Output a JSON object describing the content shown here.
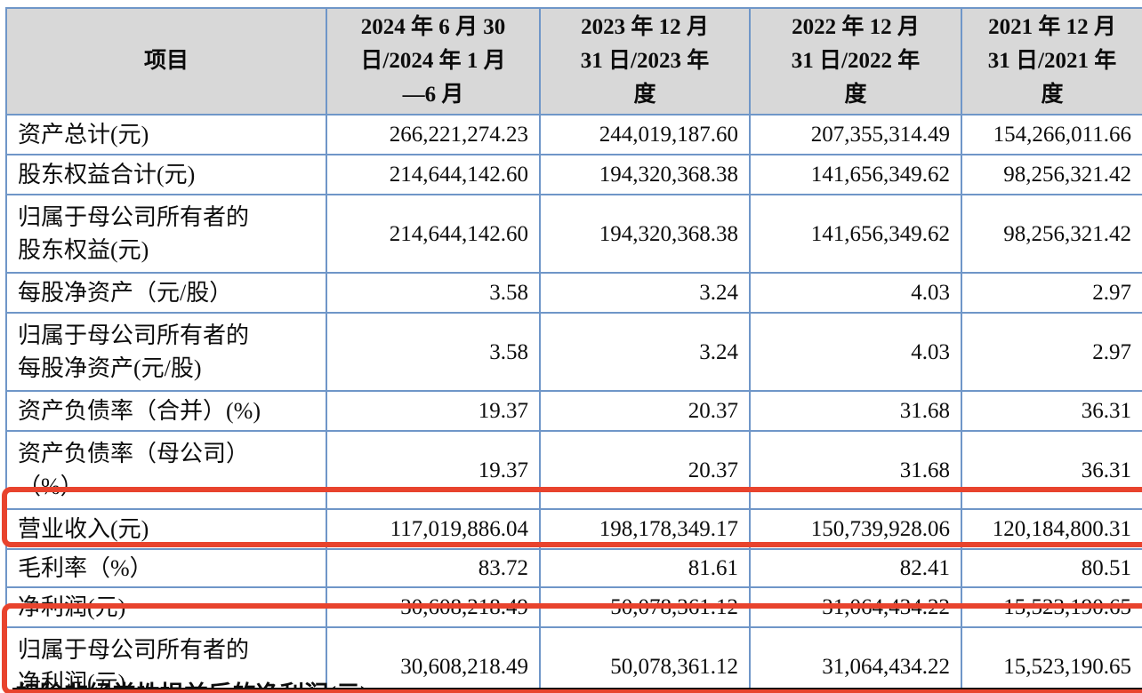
{
  "table": {
    "columns": [
      "项目",
      "2024 年 6 月 30\n日/2024 年 1 月\n—6 月",
      "2023 年 12 月\n31 日/2023 年\n度",
      "2022 年 12 月\n31 日/2022 年\n度",
      "2021 年 12 月\n31 日/2021 年\n度"
    ],
    "rows": [
      {
        "label": "资产总计(元)",
        "size": "h1",
        "values": [
          "266,221,274.23",
          "244,019,187.60",
          "207,355,314.49",
          "154,266,011.66"
        ]
      },
      {
        "label": "股东权益合计(元)",
        "size": "h1",
        "values": [
          "214,644,142.60",
          "194,320,368.38",
          "141,656,349.62",
          "98,256,321.42"
        ]
      },
      {
        "label": "归属于母公司所有者的\n股东权益(元)",
        "size": "h2",
        "values": [
          "214,644,142.60",
          "194,320,368.38",
          "141,656,349.62",
          "98,256,321.42"
        ]
      },
      {
        "label": "每股净资产（元/股）",
        "size": "h1",
        "values": [
          "3.58",
          "3.24",
          "4.03",
          "2.97"
        ]
      },
      {
        "label": "归属于母公司所有者的\n每股净资产(元/股)",
        "size": "h2",
        "values": [
          "3.58",
          "3.24",
          "4.03",
          "2.97"
        ]
      },
      {
        "label": "资产负债率（合并）(%)",
        "size": "h1",
        "values": [
          "19.37",
          "20.37",
          "31.68",
          "36.31"
        ]
      },
      {
        "label": "资产负债率（母公司）\n（%）",
        "size": "h2",
        "values": [
          "19.37",
          "20.37",
          "31.68",
          "36.31"
        ]
      },
      {
        "label": "营业收入(元)",
        "size": "h1",
        "values": [
          "117,019,886.04",
          "198,178,349.17",
          "150,739,928.06",
          "120,184,800.31"
        ]
      },
      {
        "label": "毛利率（%）",
        "size": "hs",
        "values": [
          "83.72",
          "81.61",
          "82.41",
          "80.51"
        ]
      },
      {
        "label": "净利润(元)",
        "size": "h1",
        "values": [
          "30,608,218.49",
          "50,078,361.12",
          "31,064,434.22",
          "15,523,190.65"
        ]
      },
      {
        "label": "归属于母公司所有者的\n净利润(元)",
        "size": "h2",
        "values": [
          "30,608,218.49",
          "50,078,361.12",
          "31,064,434.22",
          "15,523,190.65"
        ]
      }
    ],
    "cutoff_row_label": "扣除非经常性损益后的净利润(元)"
  },
  "annotations": {
    "highlighted_rows": [
      "营业收入(元)",
      "归属于母公司所有者的净利润(元)"
    ]
  },
  "colors": {
    "grid_border": "#6f96c8",
    "header_background": "#d8d8d8",
    "highlight_red": "#e8432d",
    "text": "#0c0c0c"
  }
}
